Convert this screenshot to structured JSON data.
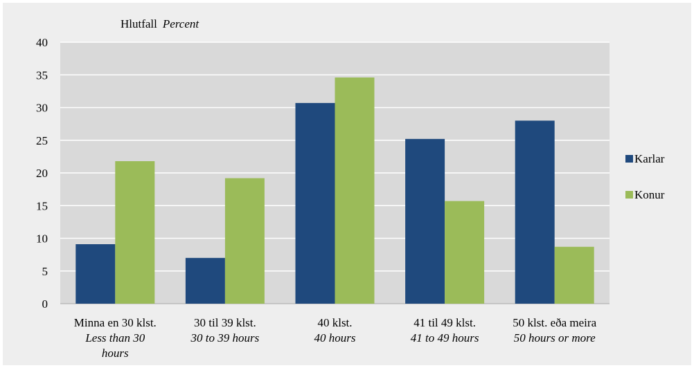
{
  "chart_data": {
    "type": "bar",
    "ylabel": "Hlutfall",
    "ylabel_en": "Percent",
    "ylim": [
      0,
      40
    ],
    "yticks": [
      0,
      5,
      10,
      15,
      20,
      25,
      30,
      35,
      40
    ],
    "grid": true,
    "legend_position": "right",
    "categories": [
      {
        "label": "Minna en 30 klst.",
        "label_en": [
          "Less than 30",
          "hours"
        ]
      },
      {
        "label": "30 til 39 klst.",
        "label_en": [
          "30 to 39 hours"
        ]
      },
      {
        "label": "40 klst.",
        "label_en": [
          "40 hours"
        ]
      },
      {
        "label": "41 til 49 klst.",
        "label_en": [
          "41 to 49 hours"
        ]
      },
      {
        "label": "50 klst. eða meira",
        "label_en": [
          "50 hours or more"
        ]
      }
    ],
    "series": [
      {
        "name": "Karlar",
        "color": "#1f497d",
        "values": [
          9.1,
          7.0,
          30.7,
          25.2,
          28.0
        ]
      },
      {
        "name": "Konur",
        "color": "#9bbb59",
        "values": [
          21.8,
          19.2,
          34.6,
          15.7,
          8.7
        ]
      }
    ]
  }
}
